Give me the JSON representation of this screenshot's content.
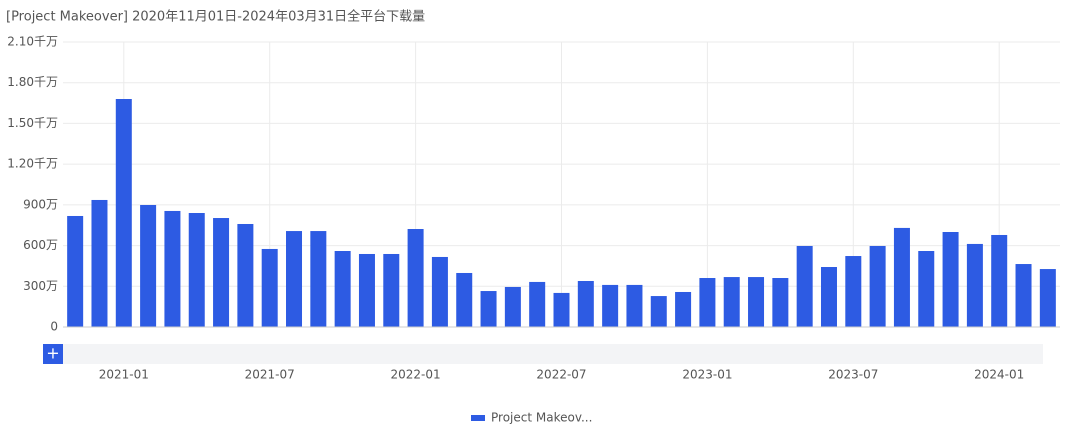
{
  "chart_data": {
    "type": "bar",
    "title": "[Project Makeover]  2020年11月01日-2024年03月31日全平台下载量",
    "categories": [
      null,
      null,
      "2021-01",
      null,
      null,
      null,
      null,
      null,
      "2021-07",
      null,
      null,
      null,
      null,
      null,
      "2022-01",
      null,
      null,
      null,
      null,
      null,
      "2022-07",
      null,
      null,
      null,
      null,
      null,
      "2023-01",
      null,
      null,
      null,
      null,
      null,
      "2023-07",
      null,
      null,
      null,
      null,
      null,
      "2024-01",
      null,
      null
    ],
    "series": [
      {
        "name": "Project Makeov...",
        "color": "#2d5be3",
        "values": [
          818,
          936,
          1680,
          899,
          855,
          840,
          803,
          759,
          575,
          707,
          707,
          560,
          538,
          538,
          722,
          516,
          398,
          265,
          295,
          332,
          251,
          339,
          310,
          310,
          228,
          258,
          361,
          368,
          368,
          361,
          597,
          442,
          523,
          597,
          730,
          560,
          700,
          612,
          678,
          464,
          427
        ]
      }
    ],
    "ylim": [
      0,
      2100
    ],
    "yticks": [
      0,
      {
        "value": 300,
        "label": "300万"
      },
      {
        "value": 600,
        "label": "600万"
      },
      {
        "value": 900,
        "label": "900万"
      },
      {
        "value": 1200,
        "label": "1.20千万"
      },
      {
        "value": 1500,
        "label": "1.50千万"
      },
      {
        "value": 1800,
        "label": "1.80千万"
      },
      {
        "value": 2100,
        "label": "2.10千万"
      }
    ],
    "grid": true
  }
}
